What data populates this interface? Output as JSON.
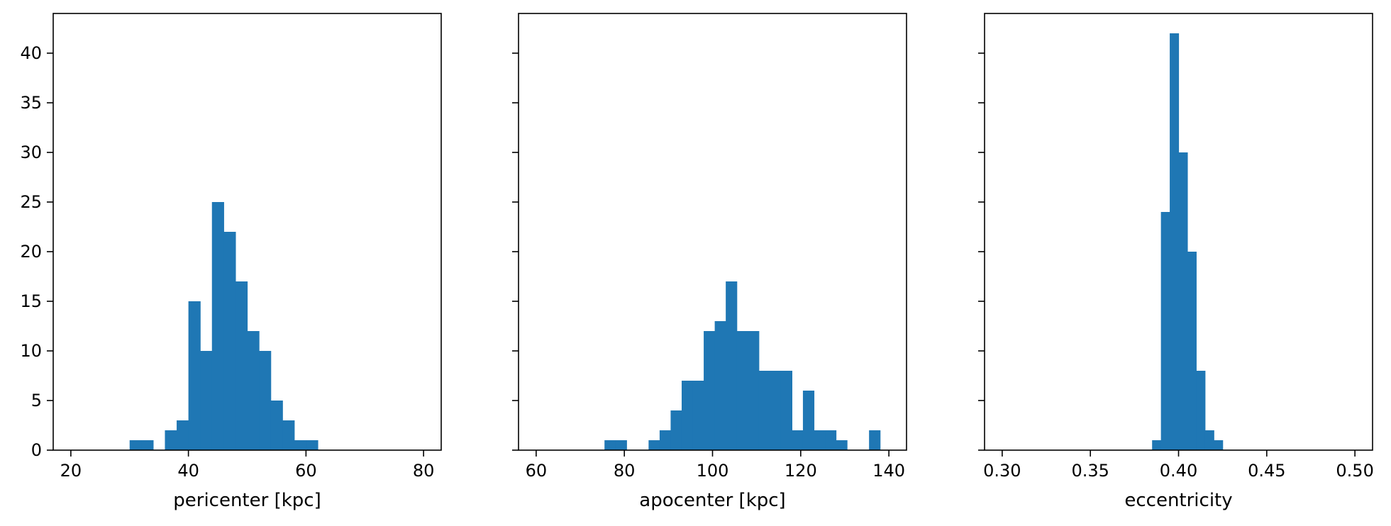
{
  "chart_data": [
    {
      "type": "bar",
      "xlabel": "pericenter [kpc]",
      "ylabel": "",
      "xlim": [
        17,
        83
      ],
      "ylim": [
        0,
        44
      ],
      "xticks": [
        "20",
        "40",
        "60",
        "80"
      ],
      "yticks": [
        "0",
        "5",
        "10",
        "15",
        "20",
        "25",
        "30",
        "35",
        "40"
      ],
      "bin_width": 2,
      "bins": [
        {
          "x0": 30,
          "x1": 32,
          "count": 1
        },
        {
          "x0": 32,
          "x1": 34,
          "count": 1
        },
        {
          "x0": 36,
          "x1": 38,
          "count": 2
        },
        {
          "x0": 38,
          "x1": 40,
          "count": 3
        },
        {
          "x0": 40,
          "x1": 42,
          "count": 15
        },
        {
          "x0": 42,
          "x1": 44,
          "count": 10
        },
        {
          "x0": 44,
          "x1": 46,
          "count": 25
        },
        {
          "x0": 46,
          "x1": 48,
          "count": 22
        },
        {
          "x0": 48,
          "x1": 50,
          "count": 17
        },
        {
          "x0": 50,
          "x1": 52,
          "count": 12
        },
        {
          "x0": 52,
          "x1": 54,
          "count": 10
        },
        {
          "x0": 54,
          "x1": 56,
          "count": 5
        },
        {
          "x0": 56,
          "x1": 58,
          "count": 3
        },
        {
          "x0": 58,
          "x1": 60,
          "count": 1
        },
        {
          "x0": 60,
          "x1": 62,
          "count": 1
        }
      ],
      "color": "#1f77b4"
    },
    {
      "type": "bar",
      "xlabel": "apocenter [kpc]",
      "ylabel": "",
      "xlim": [
        56,
        144
      ],
      "ylim": [
        0,
        44
      ],
      "xticks": [
        "60",
        "80",
        "100",
        "120",
        "140"
      ],
      "yticks": [],
      "bin_width": 2.5,
      "bins": [
        {
          "x0": 75.5,
          "x1": 78,
          "count": 1
        },
        {
          "x0": 78,
          "x1": 80.5,
          "count": 1
        },
        {
          "x0": 85.5,
          "x1": 88,
          "count": 1
        },
        {
          "x0": 88,
          "x1": 90.5,
          "count": 2
        },
        {
          "x0": 90.5,
          "x1": 93,
          "count": 4
        },
        {
          "x0": 93,
          "x1": 95.5,
          "count": 7
        },
        {
          "x0": 95.5,
          "x1": 98,
          "count": 7
        },
        {
          "x0": 98,
          "x1": 100.5,
          "count": 12
        },
        {
          "x0": 100.5,
          "x1": 103,
          "count": 13
        },
        {
          "x0": 103,
          "x1": 105.5,
          "count": 17
        },
        {
          "x0": 105.5,
          "x1": 108,
          "count": 12
        },
        {
          "x0": 108,
          "x1": 110.5,
          "count": 12
        },
        {
          "x0": 110.5,
          "x1": 113,
          "count": 8
        },
        {
          "x0": 113,
          "x1": 115.5,
          "count": 8
        },
        {
          "x0": 115.5,
          "x1": 118,
          "count": 8
        },
        {
          "x0": 118,
          "x1": 120.5,
          "count": 2
        },
        {
          "x0": 120.5,
          "x1": 123,
          "count": 6
        },
        {
          "x0": 123,
          "x1": 125.5,
          "count": 2
        },
        {
          "x0": 125.5,
          "x1": 128,
          "count": 2
        },
        {
          "x0": 128,
          "x1": 130.5,
          "count": 1
        },
        {
          "x0": 135.5,
          "x1": 138,
          "count": 2
        }
      ],
      "color": "#1f77b4"
    },
    {
      "type": "bar",
      "xlabel": "eccentricity",
      "ylabel": "",
      "xlim": [
        0.29,
        0.51
      ],
      "ylim": [
        0,
        44
      ],
      "xticks": [
        "0.30",
        "0.35",
        "0.40",
        "0.45",
        "0.50"
      ],
      "yticks": [],
      "bin_width": 0.005,
      "bins": [
        {
          "x0": 0.385,
          "x1": 0.39,
          "count": 1
        },
        {
          "x0": 0.39,
          "x1": 0.395,
          "count": 24
        },
        {
          "x0": 0.395,
          "x1": 0.4,
          "count": 42
        },
        {
          "x0": 0.4,
          "x1": 0.405,
          "count": 30
        },
        {
          "x0": 0.405,
          "x1": 0.41,
          "count": 20
        },
        {
          "x0": 0.41,
          "x1": 0.415,
          "count": 8
        },
        {
          "x0": 0.415,
          "x1": 0.42,
          "count": 2
        },
        {
          "x0": 0.42,
          "x1": 0.425,
          "count": 1
        }
      ],
      "color": "#1f77b4"
    }
  ]
}
